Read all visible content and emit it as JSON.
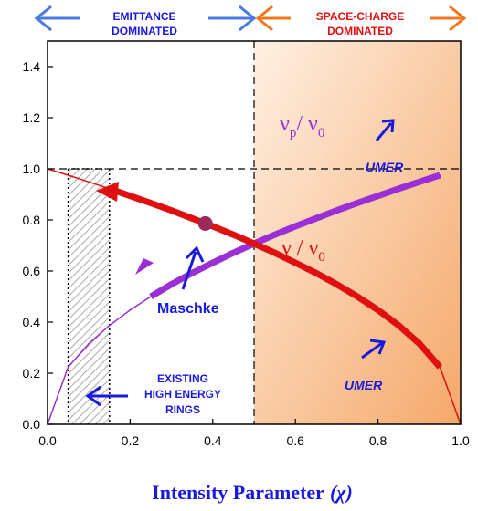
{
  "chart_data": {
    "type": "line",
    "xlabel_main": "Intensity Parameter",
    "xlabel_symbol": "(χ)",
    "xlim": [
      0.0,
      1.0
    ],
    "ylim": [
      0.0,
      1.5
    ],
    "x_ticks": [
      "0.0",
      "0.2",
      "0.4",
      "0.6",
      "0.8",
      "1.0"
    ],
    "y_ticks": [
      "0.0",
      "0.2",
      "0.4",
      "0.6",
      "0.8",
      "1.0",
      "1.2",
      "1.4"
    ],
    "x": [
      0.0,
      0.05,
      0.1,
      0.15,
      0.2,
      0.25,
      0.3,
      0.35,
      0.4,
      0.45,
      0.5,
      0.55,
      0.6,
      0.65,
      0.7,
      0.75,
      0.8,
      0.85,
      0.9,
      0.95,
      1.0
    ],
    "series": [
      {
        "name": "νp/ν0",
        "label_main": "ν",
        "label_sub": "p",
        "label_tail": "/ ν",
        "label_sub2": "0",
        "color": "#9b2fd6",
        "values": [
          0.0,
          0.224,
          0.316,
          0.387,
          0.447,
          0.5,
          0.548,
          0.592,
          0.632,
          0.671,
          0.707,
          0.742,
          0.775,
          0.806,
          0.837,
          0.866,
          0.894,
          0.922,
          0.949,
          0.975,
          1.0
        ]
      },
      {
        "name": "ν/ν0",
        "label_main": "ν / ν",
        "label_sub": "0",
        "color": "#e01010",
        "values": [
          1.0,
          0.975,
          0.949,
          0.922,
          0.894,
          0.866,
          0.837,
          0.806,
          0.775,
          0.742,
          0.707,
          0.671,
          0.632,
          0.592,
          0.548,
          0.5,
          0.447,
          0.387,
          0.316,
          0.224,
          0.0
        ]
      }
    ],
    "regions": {
      "emittance_label": [
        "EMITTANCE",
        "DOMINATED"
      ],
      "space_charge_label": [
        "SPACE-CHARGE",
        "DOMINATED"
      ],
      "boundary_x": 0.5,
      "existing_rings_x": [
        0.05,
        0.15
      ],
      "existing_rings_label": [
        "EXISTING",
        "HIGH ENERGY",
        "RINGS"
      ]
    },
    "reference_line_y": 1.0,
    "annotations": {
      "maschke": "Maschke",
      "maschke_point": [
        0.382,
        0.786
      ],
      "umer_upper": "UMER",
      "umer_lower": "UMER"
    },
    "colors": {
      "blue": "#1a1adc",
      "arrow_blue": "#4a7ae0",
      "arrow_orange": "#f07820",
      "space_charge_text": "#e01010",
      "maschke_point": "#9c2a5a",
      "shade_light": "#fff0e2",
      "shade_dark": "#f5a86a"
    }
  }
}
